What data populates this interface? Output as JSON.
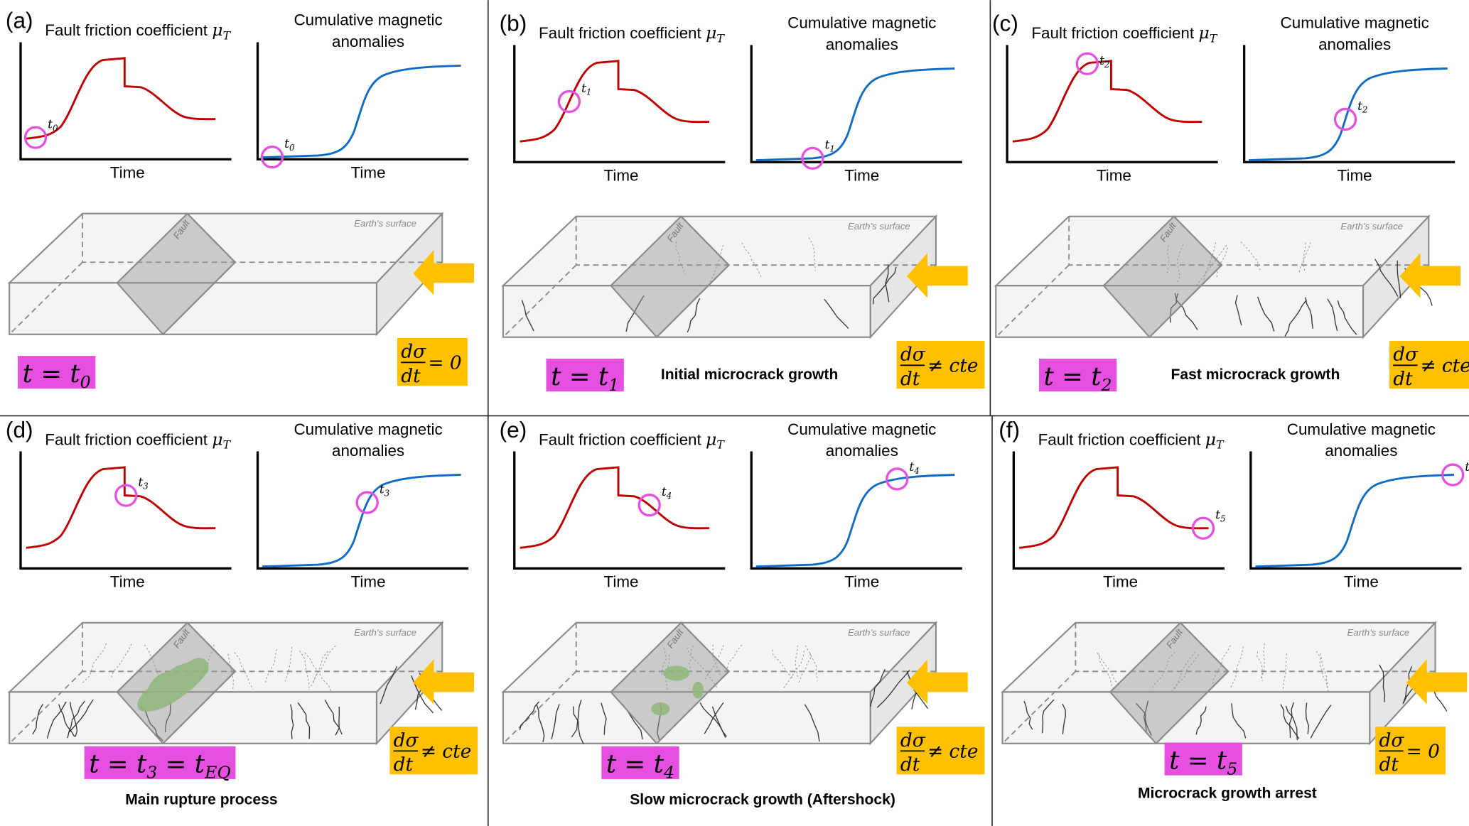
{
  "figure": {
    "colors": {
      "friction_curve": "#c00000",
      "magnetic_curve": "#0f6cc4",
      "marker_circle": "#e650e0",
      "state_box": "#e650e0",
      "stress_box": "#ffc000",
      "arrow": "#ffc000",
      "slip_patch": "#8fb77a"
    },
    "block_labels": {
      "surface": "Earth’s surface",
      "fault": "Fault"
    }
  },
  "panels": [
    {
      "label": "(a)",
      "friction_title": "Fault friction coefficient ",
      "mu": "μ",
      "mu_sub": "T",
      "magnetic_title_1": "Cumulative magnetic",
      "magnetic_title_2": "anomalies",
      "time_label": "Time",
      "marker": "t",
      "marker_sub": "0",
      "friction_time": 0.07,
      "magnetic_time": 0.07,
      "state_lhs": "t = t",
      "state_sub": "0",
      "state_extra": "",
      "state_extra_sub": "",
      "stress_num": "dσ",
      "stress_den": "dt",
      "stress_rel": "= 0",
      "caption": "",
      "crack_level": 0,
      "slip_patches": 0
    },
    {
      "label": "(b)",
      "friction_title": "Fault friction coefficient ",
      "mu": "μ",
      "mu_sub": "T",
      "magnetic_title_1": "Cumulative magnetic",
      "magnetic_title_2": "anomalies",
      "time_label": "Time",
      "marker": "t",
      "marker_sub": "1",
      "friction_time": 0.26,
      "magnetic_time": 0.29,
      "state_lhs": "t = t",
      "state_sub": "1",
      "state_extra": "",
      "state_extra_sub": "",
      "stress_num": "dσ",
      "stress_den": "dt",
      "stress_rel": "≠ cte",
      "caption": "Initial microcrack growth",
      "crack_level": 1,
      "slip_patches": 0
    },
    {
      "label": "(c)",
      "friction_title": "Fault friction coefficient ",
      "mu": "μ",
      "mu_sub": "T",
      "magnetic_title_1": "Cumulative magnetic",
      "magnetic_title_2": "anomalies",
      "time_label": "Time",
      "marker": "t",
      "marker_sub": "2",
      "friction_time": 0.38,
      "magnetic_time": 0.48,
      "state_lhs": "t = t",
      "state_sub": "2",
      "state_extra": "",
      "state_extra_sub": "",
      "stress_num": "dσ",
      "stress_den": "dt",
      "stress_rel": "≠ cte",
      "caption": "Fast microcrack growth",
      "crack_level": 2,
      "slip_patches": 0
    },
    {
      "label": "(d)",
      "friction_title": "Fault friction coefficient ",
      "mu": "μ",
      "mu_sub": "T",
      "magnetic_title_1": "Cumulative magnetic",
      "magnetic_title_2": "anomalies",
      "time_label": "Time",
      "marker": "t",
      "marker_sub": "3",
      "friction_time": 0.5,
      "magnetic_time": 0.52,
      "state_lhs": "t = t",
      "state_sub": "3",
      "state_extra": " = t",
      "state_extra_sub": "EQ",
      "stress_num": "dσ",
      "stress_den": "dt",
      "stress_rel": "≠ cte",
      "caption": "Main rupture process",
      "crack_level": 3,
      "slip_patches": 1
    },
    {
      "label": "(e)",
      "friction_title": "Fault friction coefficient ",
      "mu": "μ",
      "mu_sub": "T",
      "magnetic_title_1": "Cumulative magnetic",
      "magnetic_title_2": "anomalies",
      "time_label": "Time",
      "marker": "t",
      "marker_sub": "4",
      "friction_time": 0.64,
      "magnetic_time": 0.69,
      "state_lhs": "t = t",
      "state_sub": "4",
      "state_extra": "",
      "state_extra_sub": "",
      "stress_num": "dσ",
      "stress_den": "dt",
      "stress_rel": "≠ cte",
      "caption": "Slow microcrack growth (Aftershock)",
      "crack_level": 3,
      "slip_patches": 3
    },
    {
      "label": "(f)",
      "friction_title": "Fault friction coefficient ",
      "mu": "μ",
      "mu_sub": "T",
      "magnetic_title_1": "Cumulative magnetic",
      "magnetic_title_2": "anomalies",
      "time_label": "Time",
      "marker": "t",
      "marker_sub": "5",
      "friction_time": 0.9,
      "magnetic_time": 0.96,
      "state_lhs": "t = t",
      "state_sub": "5",
      "state_extra": "",
      "state_extra_sub": "",
      "stress_num": "dσ",
      "stress_den": "dt",
      "stress_rel": "= 0",
      "caption": "Microcrack growth arrest",
      "crack_level": 3,
      "slip_patches": 0
    }
  ]
}
